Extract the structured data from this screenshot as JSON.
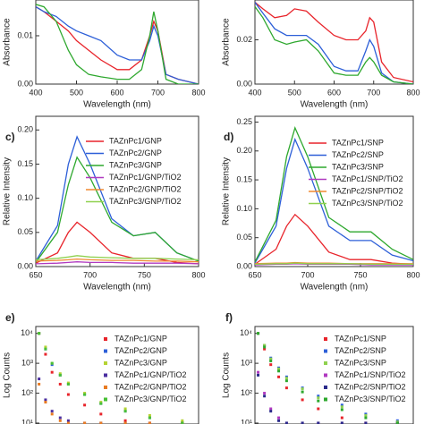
{
  "chart_data": [
    {
      "type": "line",
      "xlabel": "Wavelength (nm)",
      "ylabel": "Absorbance",
      "x": [
        400,
        420,
        450,
        480,
        500,
        530,
        560,
        600,
        630,
        660,
        680,
        690,
        700,
        720,
        750,
        800
      ],
      "xlim": [
        400,
        800
      ],
      "xticks": [
        400,
        500,
        600,
        700,
        800
      ],
      "ylim": [
        0,
        0.0174
      ],
      "yticks": [
        {
          "value": 0,
          "label": "0.00"
        },
        {
          "value": 0.01,
          "label": "0.01"
        }
      ],
      "series": [
        {
          "name": "TAZnPc1/GNP",
          "color": "#e8242b",
          "values": [
            0.016,
            0.015,
            0.013,
            0.011,
            0.009,
            0.007,
            0.005,
            0.003,
            0.003,
            0.005,
            0.01,
            0.013,
            0.011,
            0.002,
            0.001,
            0.0
          ]
        },
        {
          "name": "TAZnPc2/GNP",
          "color": "#2d5fd8",
          "values": [
            0.016,
            0.015,
            0.014,
            0.012,
            0.011,
            0.01,
            0.009,
            0.006,
            0.005,
            0.005,
            0.009,
            0.012,
            0.01,
            0.002,
            0.001,
            0.0
          ]
        },
        {
          "name": "TAZnPc3/GNP",
          "color": "#2ea82e",
          "values": [
            0.0165,
            0.016,
            0.013,
            0.007,
            0.004,
            0.002,
            0.0015,
            0.001,
            0.001,
            0.003,
            0.01,
            0.015,
            0.011,
            0.001,
            0.0,
            0.0
          ]
        }
      ]
    },
    {
      "type": "line",
      "xlabel": "Wavelength (nm)",
      "ylabel": "Absorbance",
      "x": [
        400,
        420,
        450,
        480,
        500,
        530,
        560,
        600,
        630,
        660,
        680,
        690,
        700,
        720,
        750,
        800
      ],
      "xlim": [
        400,
        800
      ],
      "xticks": [
        400,
        500,
        600,
        700,
        800
      ],
      "ylim": [
        0,
        0.038
      ],
      "yticks": [
        {
          "value": 0,
          "label": "0.00"
        },
        {
          "value": 0.02,
          "label": "0.02"
        }
      ],
      "series": [
        {
          "name": "TAZnPc1/SNP",
          "color": "#e8242b",
          "values": [
            0.037,
            0.034,
            0.03,
            0.031,
            0.034,
            0.033,
            0.028,
            0.022,
            0.02,
            0.02,
            0.024,
            0.03,
            0.028,
            0.01,
            0.003,
            0.001
          ]
        },
        {
          "name": "TAZnPc2/SNP",
          "color": "#2d5fd8",
          "values": [
            0.037,
            0.032,
            0.025,
            0.022,
            0.022,
            0.022,
            0.018,
            0.008,
            0.006,
            0.006,
            0.015,
            0.02,
            0.017,
            0.005,
            0.001,
            0.0
          ]
        },
        {
          "name": "TAZnPc3/SNP",
          "color": "#2ea82e",
          "values": [
            0.035,
            0.03,
            0.02,
            0.018,
            0.019,
            0.02,
            0.015,
            0.005,
            0.004,
            0.004,
            0.01,
            0.012,
            0.01,
            0.004,
            0.001,
            0.0
          ]
        }
      ]
    },
    {
      "type": "line",
      "panel": "c)",
      "xlabel": "Wavelength (nm)",
      "ylabel": "Relative Intensity",
      "legend": true,
      "x": [
        650,
        670,
        680,
        688,
        700,
        720,
        740,
        760,
        780,
        800
      ],
      "xlim": [
        650,
        800
      ],
      "xticks": [
        650,
        700,
        750,
        800
      ],
      "ylim": [
        0,
        0.22
      ],
      "yticks": [
        {
          "value": 0,
          "label": "0.00"
        },
        {
          "value": 0.05,
          "label": "0.05"
        },
        {
          "value": 0.1,
          "label": "0.10"
        },
        {
          "value": 0.15,
          "label": "0.15"
        },
        {
          "value": 0.2,
          "label": "0.20"
        }
      ],
      "series": [
        {
          "name": "TAZnPc1/GNP",
          "color": "#e8242b",
          "values": [
            0.005,
            0.02,
            0.05,
            0.065,
            0.05,
            0.02,
            0.012,
            0.012,
            0.006,
            0.004
          ]
        },
        {
          "name": "TAZnPc2/GNP",
          "color": "#2d5fd8",
          "values": [
            0.008,
            0.06,
            0.15,
            0.19,
            0.15,
            0.07,
            0.045,
            0.05,
            0.02,
            0.008
          ]
        },
        {
          "name": "TAZnPc3/GNP",
          "color": "#2ea82e",
          "values": [
            0.006,
            0.05,
            0.12,
            0.16,
            0.13,
            0.065,
            0.045,
            0.05,
            0.02,
            0.008
          ]
        },
        {
          "name": "TAZnPc1/GNP/TiO2",
          "color": "#b03ac0",
          "values": [
            0.004,
            0.005,
            0.006,
            0.007,
            0.006,
            0.006,
            0.005,
            0.005,
            0.005,
            0.004
          ]
        },
        {
          "name": "TAZnPc2/GNP/TiO2",
          "color": "#f08a30",
          "values": [
            0.008,
            0.009,
            0.01,
            0.011,
            0.01,
            0.009,
            0.009,
            0.008,
            0.008,
            0.007
          ]
        },
        {
          "name": "TAZnPc3/GNP/TiO2",
          "color": "#8fd14f",
          "values": [
            0.01,
            0.012,
            0.014,
            0.016,
            0.014,
            0.013,
            0.012,
            0.012,
            0.011,
            0.01
          ]
        }
      ]
    },
    {
      "type": "line",
      "panel": "d)",
      "xlabel": "Wavelength (nm)",
      "ylabel": "Relative Intensity",
      "legend": true,
      "x": [
        650,
        670,
        680,
        688,
        700,
        720,
        740,
        760,
        780,
        800
      ],
      "xlim": [
        650,
        800
      ],
      "xticks": [
        650,
        700,
        750,
        800
      ],
      "ylim": [
        0,
        0.26
      ],
      "yticks": [
        {
          "value": 0,
          "label": "0.00"
        },
        {
          "value": 0.05,
          "label": "0.05"
        },
        {
          "value": 0.1,
          "label": "0.10"
        },
        {
          "value": 0.15,
          "label": "0.15"
        },
        {
          "value": 0.2,
          "label": "0.20"
        },
        {
          "value": 0.25,
          "label": "0.25"
        }
      ],
      "series": [
        {
          "name": "TAZnPc1/SNP",
          "color": "#e8242b",
          "values": [
            0.004,
            0.03,
            0.07,
            0.09,
            0.07,
            0.025,
            0.012,
            0.012,
            0.006,
            0.004
          ]
        },
        {
          "name": "TAZnPc2/SNP",
          "color": "#2d5fd8",
          "values": [
            0.006,
            0.07,
            0.17,
            0.22,
            0.17,
            0.07,
            0.045,
            0.045,
            0.02,
            0.01
          ]
        },
        {
          "name": "TAZnPc3/SNP",
          "color": "#2ea82e",
          "values": [
            0.008,
            0.08,
            0.19,
            0.24,
            0.19,
            0.085,
            0.06,
            0.06,
            0.03,
            0.012
          ]
        },
        {
          "name": "TAZnPc1/SNP/TiO2",
          "color": "#b03ac0",
          "values": [
            0.003,
            0.004,
            0.004,
            0.005,
            0.004,
            0.004,
            0.004,
            0.003,
            0.003,
            0.003
          ]
        },
        {
          "name": "TAZnPc2/SNP/TiO2",
          "color": "#f08a30",
          "values": [
            0.005,
            0.006,
            0.006,
            0.007,
            0.006,
            0.006,
            0.005,
            0.005,
            0.005,
            0.005
          ]
        },
        {
          "name": "TAZnPc3/SNP/TiO2",
          "color": "#8fd14f",
          "values": [
            0.004,
            0.005,
            0.005,
            0.006,
            0.005,
            0.005,
            0.005,
            0.004,
            0.004,
            0.004
          ]
        }
      ]
    },
    {
      "type": "scatter",
      "panel": "e)",
      "ylabel": "Log Counts",
      "legend": true,
      "ylog": true,
      "x": [
        2,
        6,
        10,
        15,
        20,
        30,
        40,
        55,
        70,
        90
      ],
      "xlim": [
        0,
        100
      ],
      "ylim": [
        9.3,
        17000
      ],
      "yticks": [
        {
          "value": 10,
          "label": "10¹"
        },
        {
          "value": 100,
          "label": "10²"
        },
        {
          "value": 1000,
          "label": "10³"
        },
        {
          "value": 10000,
          "label": "10⁴"
        }
      ],
      "series": [
        {
          "name": "TAZnPc1/GNP",
          "color": "#e8242b",
          "values": [
            10000,
            2000,
            500,
            200,
            90,
            40,
            20,
            12,
            10,
            10
          ]
        },
        {
          "name": "TAZnPc2/GNP",
          "color": "#2d5fd8",
          "values": [
            10000,
            3000,
            900,
            400,
            200,
            90,
            45,
            25,
            15,
            10
          ]
        },
        {
          "name": "TAZnPc3/GNP",
          "color": "#b5d334",
          "values": [
            10000,
            3500,
            1000,
            450,
            220,
            100,
            50,
            30,
            18,
            12
          ]
        },
        {
          "name": "TAZnPc1/GNP/TiO2",
          "color": "#4b2fa0",
          "values": [
            300,
            60,
            25,
            15,
            12,
            10,
            10,
            10,
            10,
            10
          ]
        },
        {
          "name": "TAZnPc2/GNP/TiO2",
          "color": "#e87b22",
          "values": [
            200,
            50,
            20,
            12,
            10,
            10,
            10,
            10,
            10,
            10
          ]
        },
        {
          "name": "TAZnPc3/GNP/TiO2",
          "color": "#49c036",
          "values": [
            10000,
            3000,
            1000,
            400,
            200,
            90,
            45,
            25,
            15,
            10
          ]
        }
      ]
    },
    {
      "type": "scatter",
      "panel": "f)",
      "ylabel": "Log Counts",
      "legend": true,
      "ylog": true,
      "x": [
        2,
        6,
        10,
        15,
        20,
        30,
        40,
        55,
        70,
        90
      ],
      "xlim": [
        0,
        100
      ],
      "ylim": [
        9.3,
        17000
      ],
      "yticks": [
        {
          "value": 10,
          "label": "10¹"
        },
        {
          "value": 100,
          "label": "10²"
        },
        {
          "value": 1000,
          "label": "10³"
        },
        {
          "value": 10000,
          "label": "10⁴"
        }
      ],
      "series": [
        {
          "name": "TAZnPc1/SNP",
          "color": "#e8242b",
          "values": [
            10000,
            3000,
            900,
            350,
            150,
            60,
            30,
            15,
            10,
            10
          ]
        },
        {
          "name": "TAZnPc2/SNP",
          "color": "#2d5fd8",
          "values": [
            10000,
            4000,
            1500,
            700,
            350,
            150,
            80,
            40,
            20,
            12
          ]
        },
        {
          "name": "TAZnPc3/SNP",
          "color": "#8fd14f",
          "values": [
            10000,
            4000,
            1400,
            650,
            320,
            140,
            70,
            35,
            18,
            11
          ]
        },
        {
          "name": "TAZnPc1/SNP/TiO2",
          "color": "#b03ac0",
          "values": [
            500,
            100,
            30,
            15,
            10,
            10,
            10,
            10,
            10,
            10
          ]
        },
        {
          "name": "TAZnPc2/SNP/TiO2",
          "color": "#2a2a8a",
          "values": [
            400,
            80,
            25,
            12,
            10,
            10,
            10,
            10,
            10,
            10
          ]
        },
        {
          "name": "TAZnPc3/SNP/TiO2",
          "color": "#2ea82e",
          "values": [
            10000,
            3500,
            1200,
            550,
            260,
            110,
            55,
            28,
            15,
            10
          ]
        }
      ]
    }
  ]
}
